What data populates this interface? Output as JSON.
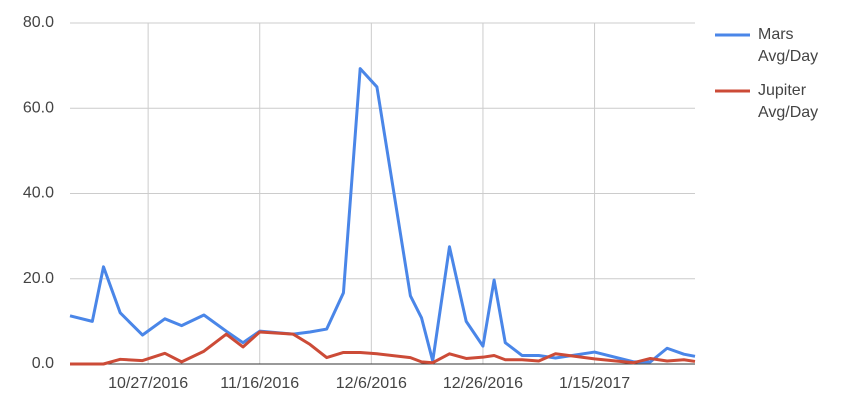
{
  "chart_data": {
    "type": "line",
    "x": [
      "10/13/2016",
      "10/17/2016",
      "10/19/2016",
      "10/22/2016",
      "10/26/2016",
      "10/30/2016",
      "11/2/2016",
      "11/6/2016",
      "11/10/2016",
      "11/13/2016",
      "11/16/2016",
      "11/22/2016",
      "11/25/2016",
      "11/28/2016",
      "12/1/2016",
      "12/4/2016",
      "12/7/2016",
      "12/13/2016",
      "12/15/2016",
      "12/17/2016",
      "12/20/2016",
      "12/23/2016",
      "12/26/2016",
      "12/28/2016",
      "12/30/2016",
      "1/2/2017",
      "1/5/2017",
      "1/8/2017",
      "1/15/2017",
      "1/22/2017",
      "1/25/2017",
      "1/28/2017",
      "1/31/2017",
      "2/2/2017"
    ],
    "series": [
      {
        "name": "Mars Avg/Day",
        "color": "#4a86e8",
        "values": [
          11.3,
          10,
          22.8,
          12,
          6.8,
          10.6,
          9,
          11.5,
          7.7,
          5,
          7.7,
          7,
          7.5,
          8.2,
          16.7,
          69.3,
          65,
          16,
          10.8,
          0.7,
          27.5,
          10,
          4.2,
          19.7,
          5,
          2,
          2,
          1.4,
          2.8,
          0.5,
          0.5,
          3.7,
          2.3,
          1.8
        ]
      },
      {
        "name": "Jupiter Avg/Day",
        "color": "#cc4b37",
        "values": [
          0,
          0,
          0,
          1.1,
          0.8,
          2.5,
          0.5,
          3,
          7,
          4,
          7.5,
          7,
          4.6,
          1.5,
          2.7,
          2.7,
          2.4,
          1.5,
          0.5,
          0.3,
          2.4,
          1.3,
          1.6,
          2,
          1,
          1,
          0.7,
          2.4,
          1.2,
          0.3,
          1.3,
          0.7,
          1,
          0.6
        ]
      }
    ],
    "xlim": [
      "10/13/2016",
      "2/2/2017"
    ],
    "xticks": [
      "10/27/2016",
      "11/16/2016",
      "12/6/2016",
      "12/26/2016",
      "1/15/2017"
    ],
    "ylim": [
      0,
      80
    ],
    "yticks": [
      {
        "value": 0,
        "label": "0.0"
      },
      {
        "value": 20,
        "label": "20.0"
      },
      {
        "value": 40,
        "label": "40.0"
      },
      {
        "value": 60,
        "label": "60.0"
      },
      {
        "value": 80,
        "label": "80.0"
      }
    ],
    "grid": true,
    "legend": "right"
  }
}
